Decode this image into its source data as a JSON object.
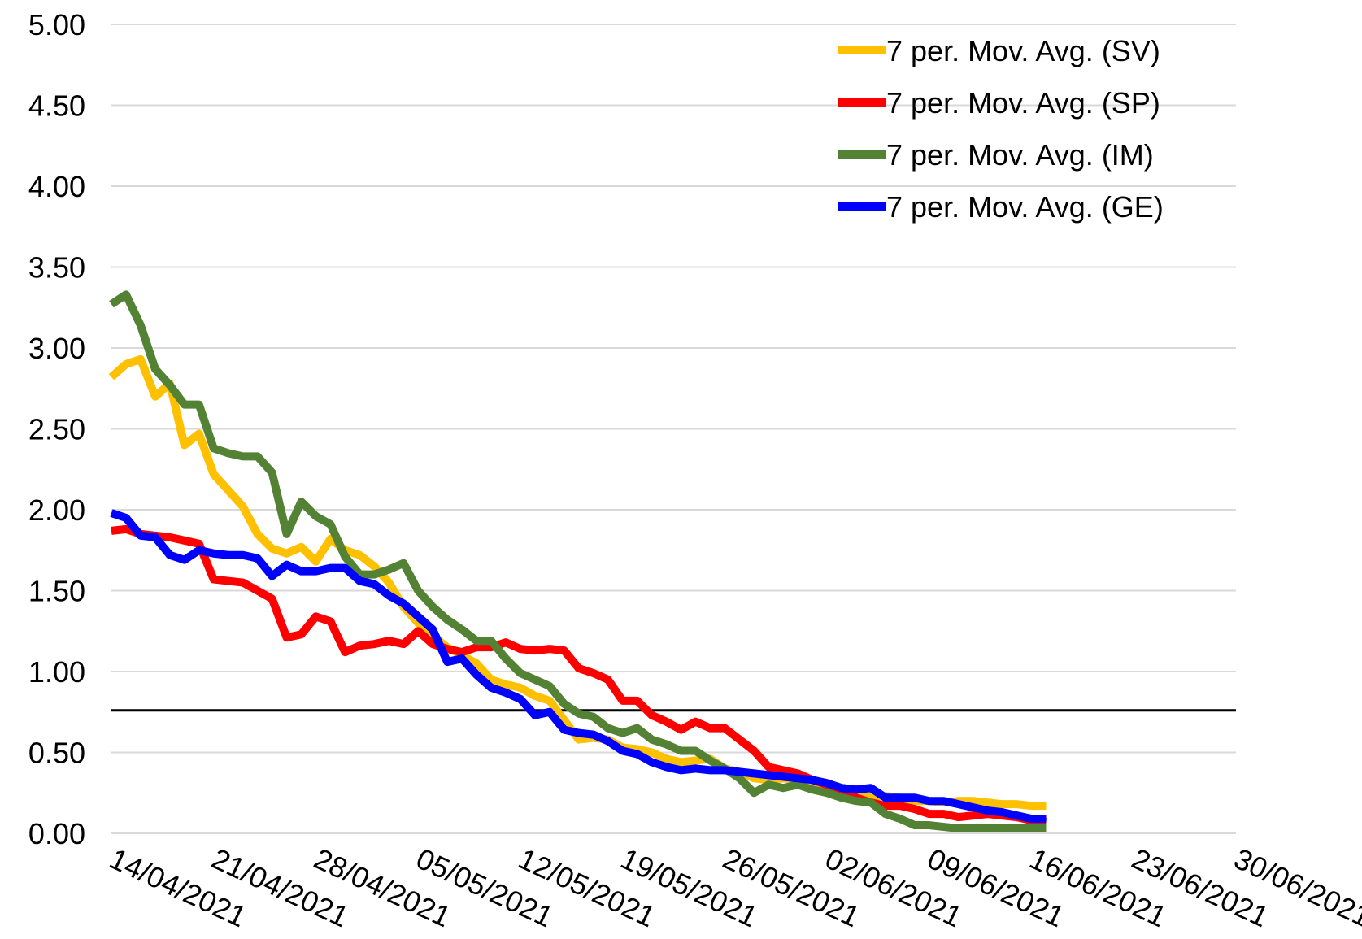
{
  "chart_data": {
    "type": "line",
    "x": [
      "14/04/2021",
      "15/04/2021",
      "16/04/2021",
      "17/04/2021",
      "18/04/2021",
      "19/04/2021",
      "20/04/2021",
      "21/04/2021",
      "22/04/2021",
      "23/04/2021",
      "24/04/2021",
      "25/04/2021",
      "26/04/2021",
      "27/04/2021",
      "28/04/2021",
      "29/04/2021",
      "30/04/2021",
      "01/05/2021",
      "02/05/2021",
      "03/05/2021",
      "04/05/2021",
      "05/05/2021",
      "06/05/2021",
      "07/05/2021",
      "08/05/2021",
      "09/05/2021",
      "10/05/2021",
      "11/05/2021",
      "12/05/2021",
      "13/05/2021",
      "14/05/2021",
      "15/05/2021",
      "16/05/2021",
      "17/05/2021",
      "18/05/2021",
      "19/05/2021",
      "20/05/2021",
      "21/05/2021",
      "22/05/2021",
      "23/05/2021",
      "24/05/2021",
      "25/05/2021",
      "26/05/2021",
      "27/05/2021",
      "28/05/2021",
      "29/05/2021",
      "30/05/2021",
      "31/05/2021",
      "01/06/2021",
      "02/06/2021",
      "03/06/2021",
      "04/06/2021",
      "05/06/2021",
      "06/06/2021",
      "07/06/2021",
      "08/06/2021",
      "09/06/2021",
      "10/06/2021",
      "11/06/2021",
      "12/06/2021",
      "13/06/2021",
      "14/06/2021",
      "15/06/2021",
      "16/06/2021",
      "17/06/2021"
    ],
    "series": [
      {
        "name": "7 per. Mov. Avg. (SV)",
        "color": "#ffc000",
        "values": [
          2.82,
          2.9,
          2.93,
          2.7,
          2.78,
          2.4,
          2.47,
          2.22,
          2.12,
          2.02,
          1.85,
          1.76,
          1.73,
          1.77,
          1.68,
          1.82,
          1.75,
          1.72,
          1.65,
          1.55,
          1.4,
          1.3,
          1.22,
          1.15,
          1.1,
          1.05,
          0.95,
          0.92,
          0.9,
          0.85,
          0.82,
          0.7,
          0.58,
          0.59,
          0.58,
          0.53,
          0.52,
          0.5,
          0.46,
          0.44,
          0.45,
          0.46,
          0.4,
          0.38,
          0.34,
          0.33,
          0.34,
          0.33,
          0.3,
          0.3,
          0.27,
          0.24,
          0.23,
          0.23,
          0.22,
          0.2,
          0.2,
          0.19,
          0.2,
          0.2,
          0.19,
          0.18,
          0.18,
          0.17,
          0.17
        ]
      },
      {
        "name": "7 per. Mov. Avg. (SP)",
        "color": "#ff0000",
        "values": [
          1.87,
          1.88,
          1.85,
          1.84,
          1.83,
          1.81,
          1.79,
          1.57,
          1.56,
          1.55,
          1.5,
          1.45,
          1.21,
          1.23,
          1.34,
          1.31,
          1.12,
          1.16,
          1.17,
          1.19,
          1.17,
          1.25,
          1.17,
          1.14,
          1.12,
          1.15,
          1.15,
          1.18,
          1.14,
          1.13,
          1.14,
          1.13,
          1.02,
          0.99,
          0.95,
          0.82,
          0.82,
          0.73,
          0.69,
          0.64,
          0.69,
          0.65,
          0.65,
          0.58,
          0.51,
          0.41,
          0.39,
          0.37,
          0.33,
          0.3,
          0.27,
          0.22,
          0.19,
          0.17,
          0.17,
          0.15,
          0.12,
          0.12,
          0.1,
          0.11,
          0.12,
          0.11,
          0.1,
          0.08,
          0.07
        ]
      },
      {
        "name": "7 per. Mov. Avg. (IM)",
        "color": "#548235",
        "values": [
          3.27,
          3.33,
          3.14,
          2.87,
          2.77,
          2.65,
          2.65,
          2.38,
          2.35,
          2.33,
          2.33,
          2.23,
          1.85,
          2.05,
          1.96,
          1.91,
          1.71,
          1.6,
          1.6,
          1.63,
          1.67,
          1.5,
          1.4,
          1.32,
          1.26,
          1.19,
          1.19,
          1.08,
          0.99,
          0.95,
          0.91,
          0.8,
          0.74,
          0.72,
          0.65,
          0.62,
          0.65,
          0.58,
          0.55,
          0.51,
          0.51,
          0.45,
          0.4,
          0.34,
          0.25,
          0.3,
          0.28,
          0.3,
          0.27,
          0.25,
          0.22,
          0.2,
          0.19,
          0.12,
          0.09,
          0.05,
          0.05,
          0.04,
          0.03,
          0.03,
          0.03,
          0.03,
          0.03,
          0.03,
          0.03
        ]
      },
      {
        "name": "7 per. Mov. Avg. (GE)",
        "color": "#0000ff",
        "values": [
          1.98,
          1.95,
          1.84,
          1.83,
          1.72,
          1.69,
          1.75,
          1.73,
          1.72,
          1.72,
          1.7,
          1.59,
          1.66,
          1.62,
          1.62,
          1.64,
          1.64,
          1.56,
          1.54,
          1.47,
          1.42,
          1.34,
          1.26,
          1.06,
          1.08,
          0.98,
          0.9,
          0.87,
          0.83,
          0.73,
          0.75,
          0.64,
          0.62,
          0.61,
          0.57,
          0.51,
          0.49,
          0.44,
          0.41,
          0.39,
          0.4,
          0.39,
          0.39,
          0.38,
          0.37,
          0.36,
          0.35,
          0.34,
          0.33,
          0.31,
          0.28,
          0.27,
          0.28,
          0.22,
          0.22,
          0.22,
          0.2,
          0.2,
          0.18,
          0.16,
          0.14,
          0.13,
          0.11,
          0.09,
          0.09
        ]
      }
    ],
    "threshold": 0.76,
    "xlim": [
      "14/04/2021",
      "30/06/2021"
    ],
    "xticks": [
      "14/04/2021",
      "21/04/2021",
      "28/04/2021",
      "05/05/2021",
      "12/05/2021",
      "19/05/2021",
      "26/05/2021",
      "02/06/2021",
      "09/06/2021",
      "16/06/2021",
      "23/06/2021",
      "30/06/2021"
    ],
    "ylim": [
      0,
      5
    ],
    "yticks": [
      {
        "value": 0,
        "label": "0.00"
      },
      {
        "value": 0.5,
        "label": "0.50"
      },
      {
        "value": 1,
        "label": "1.00"
      },
      {
        "value": 1.5,
        "label": "1.50"
      },
      {
        "value": 2,
        "label": "2.00"
      },
      {
        "value": 2.5,
        "label": "2.50"
      },
      {
        "value": 3,
        "label": "3.00"
      },
      {
        "value": 3.5,
        "label": "3.50"
      },
      {
        "value": 4,
        "label": "4.00"
      },
      {
        "value": 4.5,
        "label": "4.50"
      },
      {
        "value": 5,
        "label": "5.00"
      }
    ],
    "grid": true,
    "legend": "top-right"
  }
}
